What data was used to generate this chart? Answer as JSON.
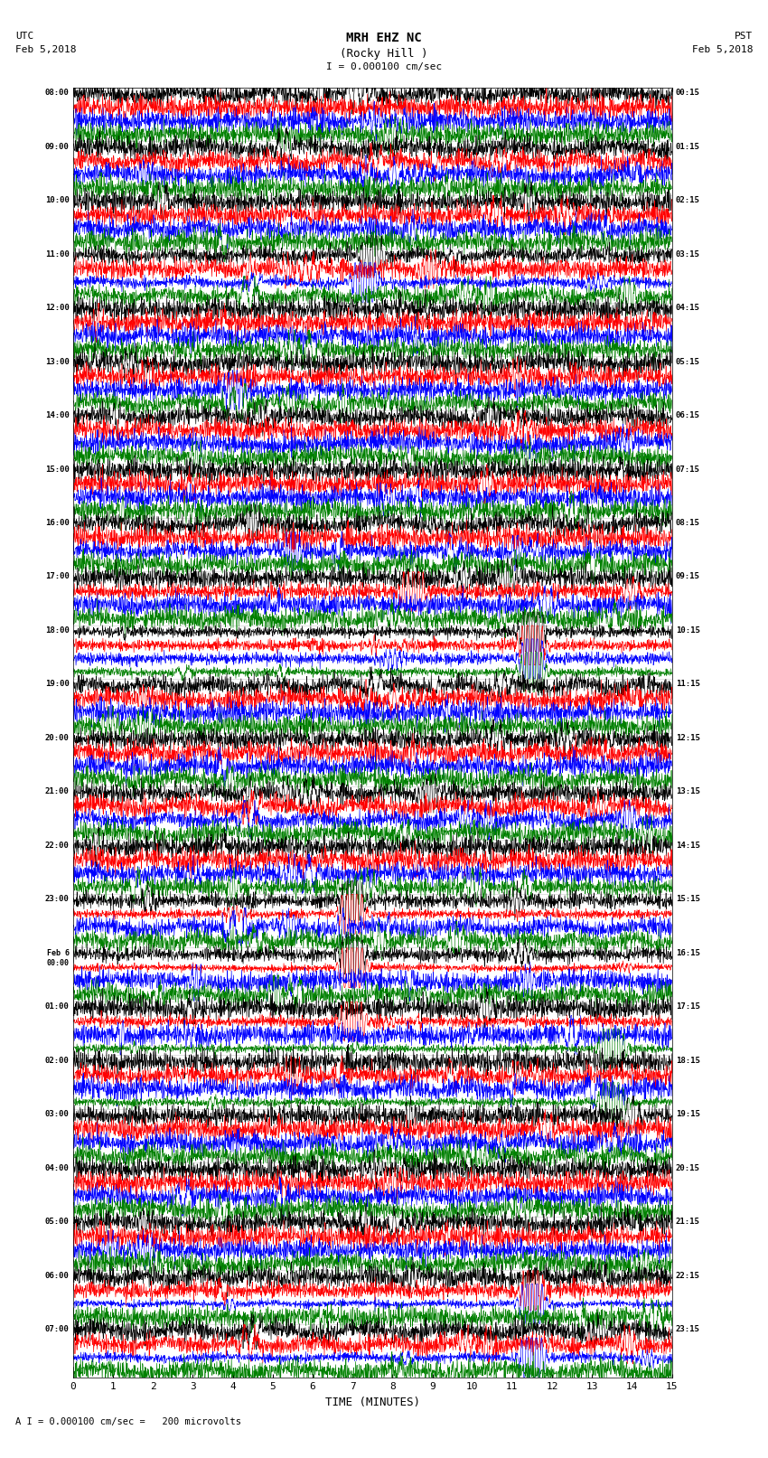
{
  "title_line1": "MRH EHZ NC",
  "title_line2": "(Rocky Hill )",
  "scale_label": "I = 0.000100 cm/sec",
  "bottom_label": "A I = 0.000100 cm/sec =   200 microvolts",
  "xlabel": "TIME (MINUTES)",
  "utc_label": "UTC\nFeb 5,2018",
  "pst_label": "PST\nFeb 5,2018",
  "left_times": [
    "08:00",
    "09:00",
    "10:00",
    "11:00",
    "12:00",
    "13:00",
    "14:00",
    "15:00",
    "16:00",
    "17:00",
    "18:00",
    "19:00",
    "20:00",
    "21:00",
    "22:00",
    "23:00",
    "Feb 6\n00:00",
    "01:00",
    "02:00",
    "03:00",
    "04:00",
    "05:00",
    "06:00",
    "07:00"
  ],
  "right_times": [
    "00:15",
    "01:15",
    "02:15",
    "03:15",
    "04:15",
    "05:15",
    "06:15",
    "07:15",
    "08:15",
    "09:15",
    "10:15",
    "11:15",
    "12:15",
    "13:15",
    "14:15",
    "15:15",
    "16:15",
    "17:15",
    "18:15",
    "19:15",
    "20:15",
    "21:15",
    "22:15",
    "23:15"
  ],
  "num_rows": 24,
  "traces_per_row": 4,
  "colors": [
    "black",
    "red",
    "blue",
    "green"
  ],
  "bg_color": "white",
  "time_minutes": 15,
  "samples_per_trace": 1800,
  "fig_width": 8.5,
  "fig_height": 16.13,
  "dpi": 100
}
